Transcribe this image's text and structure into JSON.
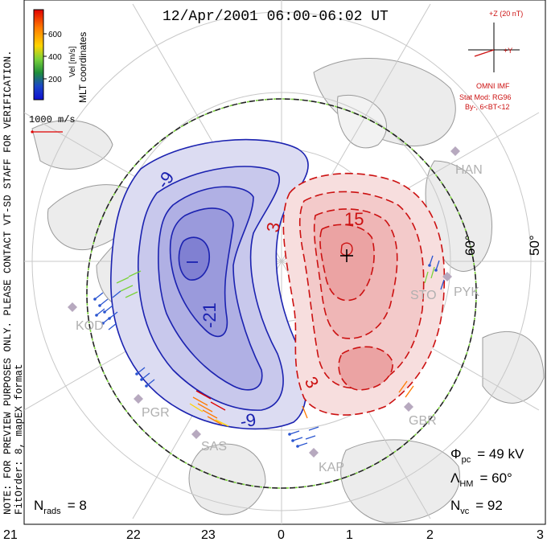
{
  "title": "12/Apr/2001 06:00-06:02 UT",
  "colorbar": {
    "unit_label": "Vel [m/s]",
    "ticks": [
      "600",
      "400",
      "200"
    ],
    "colors": [
      "#e00000",
      "#ff7a00",
      "#ffd400",
      "#7ad23a",
      "#1f8f3a",
      "#1a46c8",
      "#1010d0"
    ]
  },
  "coords_label": "MLT coordinates",
  "scale_vector_label": "1000 m/s",
  "side_note": "NOTE: FOR PREVIEW PURPOSES ONLY. PLEASE CONTACT VT-SD STAFF FOR VERIFICATION.",
  "fit_order": "FitOrder: 8, mapEX format",
  "imf": {
    "z_label": "+Z (20 nT)",
    "y_label": "+Y",
    "source": "OMNI IMF",
    "model": "Stat Mod: RG96",
    "condition": "By-, 6<BT<12"
  },
  "latitude_labels": [
    "60°",
    "50°"
  ],
  "contours": {
    "negative": [
      "-9",
      "-21",
      "-9"
    ],
    "positive": [
      "3",
      "15",
      "3"
    ]
  },
  "stations": [
    "HAN",
    "PYK",
    "STO",
    "KOD",
    "PGR",
    "SAS",
    "KAP",
    "GBR"
  ],
  "stats": {
    "phi_label": "Φ",
    "phi_sub": "pc",
    "phi_value": "= 49 kV",
    "lambda_label": "Λ",
    "lambda_sub": "HM",
    "lambda_value": "= 60°",
    "nvc_label": "N",
    "nvc_sub": "vc",
    "nvc_value": "= 92",
    "nrads_label": "N",
    "nrads_sub": "rads",
    "nrads_value": "= 8"
  },
  "mlt_axis": [
    "21",
    "22",
    "23",
    "0",
    "1",
    "2",
    "3"
  ],
  "colors": {
    "negative_potential": "#1b22b0",
    "positive_potential": "#cc1111",
    "imf_red": "#cc1111"
  }
}
